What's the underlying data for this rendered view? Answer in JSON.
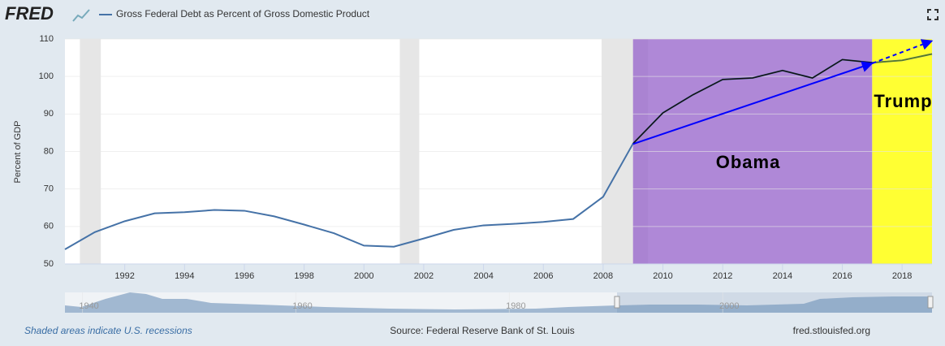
{
  "chart_data": {
    "type": "line",
    "logo": "FRED",
    "ylabel": "Percent of GDP",
    "x": [
      1990,
      1991,
      1992,
      1993,
      1994,
      1995,
      1996,
      1997,
      1998,
      1999,
      2000,
      2001,
      2002,
      2003,
      2004,
      2005,
      2006,
      2007,
      2008,
      2009,
      2010,
      2011,
      2012,
      2013,
      2014,
      2015,
      2016,
      2017,
      2018,
      2019
    ],
    "series": [
      {
        "name": "Gross Federal Debt as Percent of Gross Domestic Product",
        "color": "#4572a7",
        "values": [
          53.9,
          58.5,
          61.4,
          63.5,
          63.8,
          64.4,
          64.2,
          62.7,
          60.5,
          58.2,
          54.9,
          54.6,
          56.8,
          59.1,
          60.3,
          60.7,
          61.2,
          62.0,
          67.9,
          82.1,
          90.3,
          95.1,
          99.2,
          99.6,
          101.6,
          99.6,
          104.5,
          103.7,
          104.3,
          106.0
        ]
      }
    ],
    "xlim": [
      1990,
      2019
    ],
    "xticks": [
      1992,
      1994,
      1996,
      1998,
      2000,
      2002,
      2004,
      2006,
      2008,
      2010,
      2012,
      2014,
      2016,
      2018
    ],
    "ylim": [
      50,
      110
    ],
    "yticks": [
      50,
      60,
      70,
      80,
      90,
      100,
      110
    ],
    "grid": true,
    "recessions": [
      [
        1990.5,
        1991.2
      ],
      [
        2001.2,
        2001.85
      ],
      [
        2007.95,
        2009.5
      ]
    ],
    "recession_color": "#e6e6e6",
    "regions": [
      {
        "label": "Obama",
        "from": 2009,
        "to": 2017,
        "color": "#9966cc",
        "line_color": "#111111"
      },
      {
        "label": "Trump",
        "from": 2017,
        "to": 2019,
        "color": "#ffff33",
        "line_color": "#5a7a1e"
      }
    ],
    "arrows": [
      {
        "from": [
          2009,
          82
        ],
        "to": [
          2017,
          103.5
        ],
        "color": "#0000ff",
        "dashed": false
      },
      {
        "from": [
          2017,
          103.5
        ],
        "to": [
          2019,
          109.5
        ],
        "color": "#0000ff",
        "dashed": true
      }
    ],
    "navigator": {
      "xlim": [
        1937.75,
        2019
      ],
      "xticks": [
        1940,
        1960,
        1980,
        2000
      ]
    },
    "footer_left": "Shaded areas indicate U.S. recessions",
    "footer_center": "Source: Federal Reserve Bank of St. Louis",
    "footer_right": "fred.stlouisfed.org"
  }
}
